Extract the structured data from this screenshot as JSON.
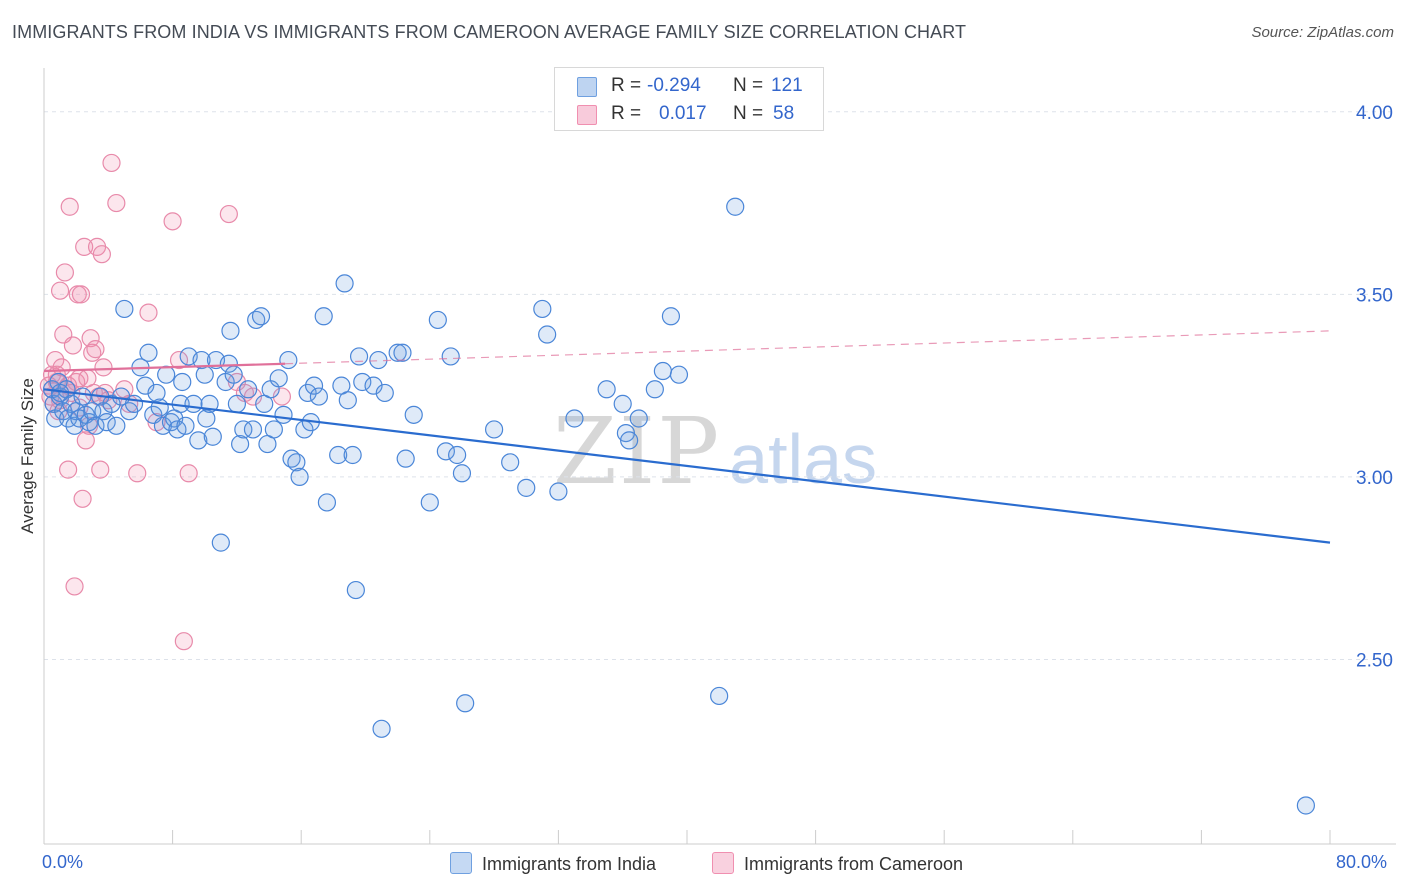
{
  "header": {
    "title": "IMMIGRANTS FROM INDIA VS IMMIGRANTS FROM CAMEROON AVERAGE FAMILY SIZE CORRELATION CHART",
    "source": "Source: ZipAtlas.com"
  },
  "watermark": {
    "zip": "ZIP",
    "atlas": "atlas"
  },
  "legend": {
    "rows": [
      {
        "r_label": "R =",
        "r_value": "-0.294",
        "n_label": "N =",
        "n_value": "121",
        "color": "#6fa0e0"
      },
      {
        "r_label": "R =",
        "r_value": "0.017",
        "n_label": "N =",
        "n_value": "58",
        "color": "#f08fb0"
      }
    ]
  },
  "bottom_legend": {
    "india": "Immigrants from India",
    "cameroon": "Immigrants from Cameroon"
  },
  "axes": {
    "x_min_label": "0.0%",
    "x_max_label": "80.0%"
  },
  "colors": {
    "india_fill": "rgba(110,160,225,0.22)",
    "india_stroke": "#4a86d8",
    "india_line": "#2a6ccf",
    "cameroon_fill": "rgba(240,140,175,0.22)",
    "cameroon_stroke": "#e88aaa",
    "cameroon_line": "#e0709a",
    "tick_text": "#3366cc"
  },
  "chart_data": {
    "type": "scatter",
    "title": "IMMIGRANTS FROM INDIA VS IMMIGRANTS FROM CAMEROON AVERAGE FAMILY SIZE CORRELATION CHART",
    "xlabel": "",
    "ylabel": "Average Family Size",
    "xlim": [
      0,
      80
    ],
    "ylim": [
      2.0,
      4.12
    ],
    "y_ticks": [
      2.5,
      3.0,
      3.5,
      4.0
    ],
    "y_tick_labels": [
      "2.50",
      "3.00",
      "3.50",
      "4.00"
    ],
    "grid": "horizontal dashed",
    "legend_position": "top-center",
    "series": [
      {
        "name": "Immigrants from India",
        "r": -0.294,
        "n": 121,
        "trend": {
          "x": [
            0,
            80
          ],
          "y": [
            3.24,
            2.82
          ],
          "style": "solid"
        },
        "points": [
          [
            0.5,
            3.24
          ],
          [
            0.6,
            3.2
          ],
          [
            0.7,
            3.16
          ],
          [
            0.9,
            3.26
          ],
          [
            1.0,
            3.22
          ],
          [
            1.2,
            3.18
          ],
          [
            1.4,
            3.24
          ],
          [
            1.5,
            3.16
          ],
          [
            1.7,
            3.2
          ],
          [
            1.9,
            3.14
          ],
          [
            2.0,
            3.18
          ],
          [
            2.2,
            3.16
          ],
          [
            2.4,
            3.22
          ],
          [
            2.6,
            3.17
          ],
          [
            2.8,
            3.15
          ],
          [
            3.0,
            3.18
          ],
          [
            3.2,
            3.14
          ],
          [
            3.5,
            3.22
          ],
          [
            3.7,
            3.18
          ],
          [
            3.9,
            3.15
          ],
          [
            4.2,
            3.2
          ],
          [
            4.5,
            3.14
          ],
          [
            4.8,
            3.22
          ],
          [
            5.0,
            3.46
          ],
          [
            5.3,
            3.18
          ],
          [
            5.6,
            3.2
          ],
          [
            6.0,
            3.3
          ],
          [
            6.3,
            3.25
          ],
          [
            6.5,
            3.34
          ],
          [
            6.8,
            3.17
          ],
          [
            7.0,
            3.23
          ],
          [
            7.2,
            3.19
          ],
          [
            7.4,
            3.14
          ],
          [
            7.6,
            3.28
          ],
          [
            7.9,
            3.15
          ],
          [
            8.1,
            3.16
          ],
          [
            8.3,
            3.13
          ],
          [
            8.5,
            3.2
          ],
          [
            8.6,
            3.26
          ],
          [
            8.8,
            3.14
          ],
          [
            9.0,
            3.33
          ],
          [
            9.3,
            3.2
          ],
          [
            9.6,
            3.1
          ],
          [
            9.8,
            3.32
          ],
          [
            10.0,
            3.28
          ],
          [
            10.1,
            3.16
          ],
          [
            10.3,
            3.2
          ],
          [
            10.5,
            3.11
          ],
          [
            10.7,
            3.32
          ],
          [
            11.0,
            2.82
          ],
          [
            11.3,
            3.26
          ],
          [
            11.5,
            3.31
          ],
          [
            11.6,
            3.4
          ],
          [
            11.8,
            3.28
          ],
          [
            12.0,
            3.2
          ],
          [
            12.2,
            3.09
          ],
          [
            12.4,
            3.13
          ],
          [
            12.7,
            3.24
          ],
          [
            13.0,
            3.13
          ],
          [
            13.2,
            3.43
          ],
          [
            13.5,
            3.44
          ],
          [
            13.7,
            3.2
          ],
          [
            13.9,
            3.09
          ],
          [
            14.1,
            3.24
          ],
          [
            14.3,
            3.13
          ],
          [
            14.6,
            3.27
          ],
          [
            14.9,
            3.17
          ],
          [
            15.2,
            3.32
          ],
          [
            15.4,
            3.05
          ],
          [
            15.7,
            3.04
          ],
          [
            15.9,
            3.0
          ],
          [
            16.2,
            3.13
          ],
          [
            16.4,
            3.23
          ],
          [
            16.6,
            3.15
          ],
          [
            16.8,
            3.25
          ],
          [
            17.1,
            3.22
          ],
          [
            17.4,
            3.44
          ],
          [
            17.6,
            2.93
          ],
          [
            18.3,
            3.06
          ],
          [
            18.5,
            3.25
          ],
          [
            18.7,
            3.53
          ],
          [
            18.9,
            3.21
          ],
          [
            19.2,
            3.06
          ],
          [
            19.4,
            2.69
          ],
          [
            19.6,
            3.33
          ],
          [
            19.8,
            3.26
          ],
          [
            20.5,
            3.25
          ],
          [
            20.8,
            3.32
          ],
          [
            21.0,
            2.31
          ],
          [
            21.2,
            3.23
          ],
          [
            22.0,
            3.34
          ],
          [
            22.3,
            3.34
          ],
          [
            22.5,
            3.05
          ],
          [
            23.0,
            3.17
          ],
          [
            24.0,
            2.93
          ],
          [
            24.5,
            3.43
          ],
          [
            25.0,
            3.07
          ],
          [
            25.3,
            3.33
          ],
          [
            25.7,
            3.06
          ],
          [
            26.0,
            3.01
          ],
          [
            26.2,
            2.38
          ],
          [
            28.0,
            3.13
          ],
          [
            29.0,
            3.04
          ],
          [
            30.0,
            2.97
          ],
          [
            31.0,
            3.46
          ],
          [
            31.3,
            3.39
          ],
          [
            32.0,
            2.96
          ],
          [
            33.0,
            3.16
          ],
          [
            35.0,
            3.24
          ],
          [
            36.0,
            3.2
          ],
          [
            36.2,
            3.12
          ],
          [
            36.4,
            3.1
          ],
          [
            37.0,
            3.16
          ],
          [
            38.0,
            3.24
          ],
          [
            38.5,
            3.29
          ],
          [
            39.0,
            3.44
          ],
          [
            39.5,
            3.28
          ],
          [
            42.0,
            2.4
          ],
          [
            43.0,
            3.74
          ],
          [
            78.5,
            2.1
          ],
          [
            1.0,
            3.23
          ]
        ]
      },
      {
        "name": "Immigrants from Cameroon",
        "r": 0.017,
        "n": 58,
        "trend": {
          "x": [
            0,
            15
          ],
          "y": [
            3.29,
            3.31
          ],
          "style": "solid",
          "extension": {
            "x": [
              15,
              80
            ],
            "y": [
              3.31,
              3.4
            ],
            "style": "dashed"
          }
        },
        "points": [
          [
            0.3,
            3.25
          ],
          [
            0.4,
            3.22
          ],
          [
            0.5,
            3.28
          ],
          [
            0.6,
            3.2
          ],
          [
            0.7,
            3.32
          ],
          [
            0.8,
            3.26
          ],
          [
            0.9,
            3.18
          ],
          [
            1.0,
            3.51
          ],
          [
            1.1,
            3.3
          ],
          [
            1.2,
            3.39
          ],
          [
            1.3,
            3.56
          ],
          [
            1.4,
            3.24
          ],
          [
            1.5,
            3.02
          ],
          [
            1.6,
            3.74
          ],
          [
            1.7,
            3.23
          ],
          [
            1.8,
            3.36
          ],
          [
            1.9,
            2.7
          ],
          [
            2.0,
            3.26
          ],
          [
            2.1,
            3.5
          ],
          [
            2.2,
            3.27
          ],
          [
            2.3,
            3.5
          ],
          [
            2.4,
            2.94
          ],
          [
            2.5,
            3.63
          ],
          [
            2.6,
            3.1
          ],
          [
            2.7,
            3.27
          ],
          [
            2.8,
            3.14
          ],
          [
            2.9,
            3.38
          ],
          [
            3.0,
            3.34
          ],
          [
            3.1,
            3.23
          ],
          [
            3.2,
            3.35
          ],
          [
            3.3,
            3.63
          ],
          [
            3.4,
            3.22
          ],
          [
            3.5,
            3.02
          ],
          [
            3.6,
            3.61
          ],
          [
            3.7,
            3.3
          ],
          [
            3.8,
            3.23
          ],
          [
            4.0,
            3.21
          ],
          [
            4.2,
            3.86
          ],
          [
            4.5,
            3.75
          ],
          [
            5.0,
            3.24
          ],
          [
            5.3,
            3.2
          ],
          [
            5.8,
            3.01
          ],
          [
            6.5,
            3.45
          ],
          [
            7.0,
            3.15
          ],
          [
            8.0,
            3.7
          ],
          [
            8.4,
            3.32
          ],
          [
            8.7,
            2.55
          ],
          [
            9.0,
            3.01
          ],
          [
            11.5,
            3.72
          ],
          [
            12.0,
            3.26
          ],
          [
            12.5,
            3.23
          ],
          [
            13.0,
            3.22
          ],
          [
            14.8,
            3.22
          ],
          [
            0.5,
            3.24
          ],
          [
            1.0,
            3.21
          ],
          [
            0.8,
            3.28
          ],
          [
            1.5,
            3.25
          ],
          [
            2.2,
            3.19
          ]
        ]
      }
    ]
  }
}
